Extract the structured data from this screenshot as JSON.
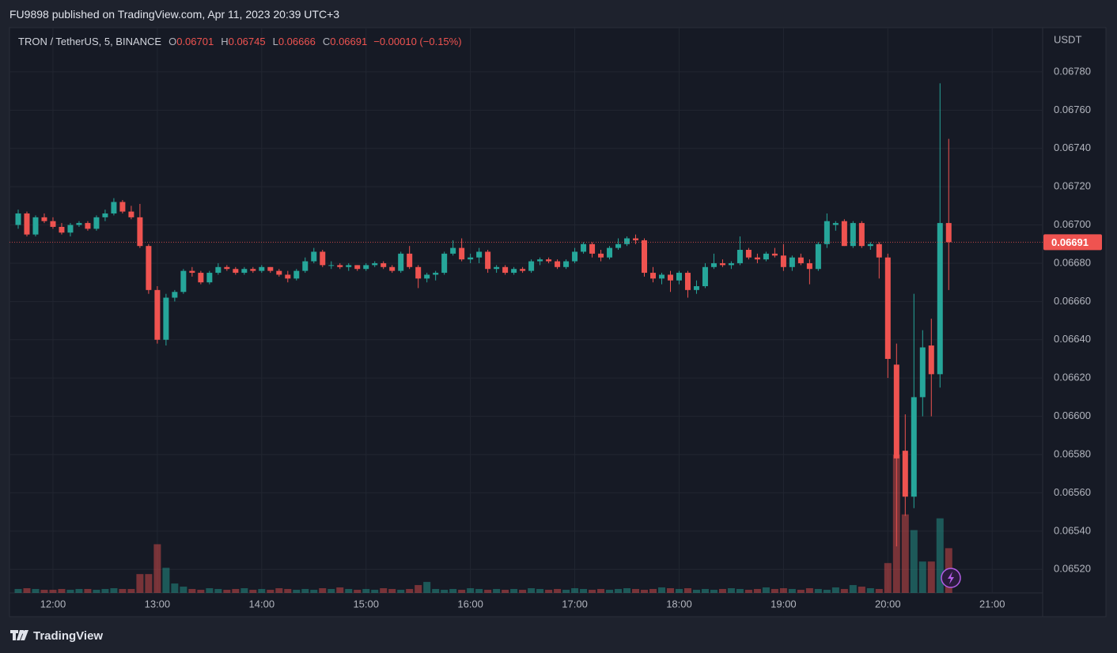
{
  "header": "FU9898 published on TradingView.com, Apr 11, 2023 20:39 UTC+3",
  "brand": "TradingView",
  "chart_data": {
    "type": "candlestick",
    "symbol": "TRON / TetherUS, 5, BINANCE",
    "ohlc_labels": [
      "O",
      "H",
      "L",
      "C"
    ],
    "change": "−0.00010 (−0.15%)",
    "y_unit": "USDT",
    "up_color": "#26a69a",
    "down_color": "#ef5350",
    "grid": true,
    "x": [
      "11:40",
      "11:45",
      "11:50",
      "11:55",
      "12:00",
      "12:05",
      "12:10",
      "12:15",
      "12:20",
      "12:25",
      "12:30",
      "12:35",
      "12:40",
      "12:45",
      "12:50",
      "12:55",
      "13:00",
      "13:05",
      "13:10",
      "13:15",
      "13:20",
      "13:25",
      "13:30",
      "13:35",
      "13:40",
      "13:45",
      "13:50",
      "13:55",
      "14:00",
      "14:05",
      "14:10",
      "14:15",
      "14:20",
      "14:25",
      "14:30",
      "14:35",
      "14:40",
      "14:45",
      "14:50",
      "14:55",
      "15:00",
      "15:05",
      "15:10",
      "15:15",
      "15:20",
      "15:25",
      "15:30",
      "15:35",
      "15:40",
      "15:45",
      "15:50",
      "15:55",
      "16:00",
      "16:05",
      "16:10",
      "16:15",
      "16:20",
      "16:25",
      "16:30",
      "16:35",
      "16:40",
      "16:45",
      "16:50",
      "16:55",
      "17:00",
      "17:05",
      "17:10",
      "17:15",
      "17:20",
      "17:25",
      "17:30",
      "17:35",
      "17:40",
      "17:45",
      "17:50",
      "17:55",
      "18:00",
      "18:05",
      "18:10",
      "18:15",
      "18:20",
      "18:25",
      "18:30",
      "18:35",
      "18:40",
      "18:45",
      "18:50",
      "18:55",
      "19:00",
      "19:05",
      "19:10",
      "19:15",
      "19:20",
      "19:25",
      "19:30",
      "19:35",
      "19:40",
      "19:45",
      "19:50",
      "19:55",
      "20:00",
      "20:05",
      "20:10",
      "20:15",
      "20:20",
      "20:25",
      "20:30",
      "20:35"
    ],
    "open": [
      0.067,
      0.06706,
      0.06695,
      0.06704,
      0.06702,
      0.06699,
      0.06696,
      0.067,
      0.06701,
      0.06698,
      0.06704,
      0.06706,
      0.06712,
      0.06707,
      0.06704,
      0.06689,
      0.06666,
      0.0664,
      0.06662,
      0.06665,
      0.06676,
      0.06675,
      0.0667,
      0.06675,
      0.06678,
      0.06677,
      0.06675,
      0.06677,
      0.06676,
      0.06678,
      0.06676,
      0.06674,
      0.06672,
      0.06676,
      0.06681,
      0.06686,
      0.06679,
      0.06679,
      0.06678,
      0.06679,
      0.06677,
      0.06679,
      0.0668,
      0.06678,
      0.06676,
      0.06685,
      0.06678,
      0.06672,
      0.06674,
      0.06675,
      0.06685,
      0.06688,
      0.06682,
      0.06683,
      0.06686,
      0.06677,
      0.06678,
      0.06675,
      0.06677,
      0.06676,
      0.06681,
      0.06682,
      0.06681,
      0.06678,
      0.06681,
      0.06686,
      0.0669,
      0.06685,
      0.06683,
      0.06688,
      0.0669,
      0.06693,
      0.06692,
      0.06675,
      0.06672,
      0.06674,
      0.06671,
      0.06675,
      0.06666,
      0.06668,
      0.06678,
      0.0668,
      0.06679,
      0.0668,
      0.06687,
      0.06683,
      0.06682,
      0.06685,
      0.06684,
      0.06678,
      0.06683,
      0.0668,
      0.06677,
      0.0669,
      0.067,
      0.06702,
      0.06689,
      0.06701,
      0.06689,
      0.0669,
      0.06683,
      0.06627,
      0.06582,
      0.06558,
      0.0661,
      0.06637,
      0.06622,
      0.06701
    ],
    "high": [
      0.06708,
      0.06707,
      0.06705,
      0.06706,
      0.06704,
      0.06701,
      0.06701,
      0.06702,
      0.06702,
      0.06705,
      0.06708,
      0.06714,
      0.06713,
      0.0671,
      0.06711,
      0.0669,
      0.06668,
      0.06664,
      0.06666,
      0.06677,
      0.06678,
      0.06676,
      0.06676,
      0.0668,
      0.06679,
      0.06678,
      0.06678,
      0.06678,
      0.06679,
      0.06678,
      0.06677,
      0.06676,
      0.06677,
      0.06683,
      0.06688,
      0.06687,
      0.06681,
      0.0668,
      0.0668,
      0.06679,
      0.0668,
      0.06681,
      0.06681,
      0.06679,
      0.06686,
      0.06689,
      0.06679,
      0.06675,
      0.06676,
      0.06686,
      0.06692,
      0.06693,
      0.06685,
      0.06688,
      0.06687,
      0.06679,
      0.06679,
      0.06678,
      0.06678,
      0.06682,
      0.06683,
      0.06683,
      0.06682,
      0.06682,
      0.06688,
      0.06691,
      0.06691,
      0.06687,
      0.06689,
      0.06693,
      0.06694,
      0.06695,
      0.06693,
      0.06678,
      0.06675,
      0.06676,
      0.06676,
      0.06676,
      0.06671,
      0.0668,
      0.06685,
      0.06682,
      0.06681,
      0.06694,
      0.06688,
      0.06685,
      0.06686,
      0.06688,
      0.0669,
      0.06684,
      0.06685,
      0.06682,
      0.06691,
      0.06706,
      0.06702,
      0.06703,
      0.06702,
      0.06702,
      0.06691,
      0.06691,
      0.06685,
      0.06638,
      0.06601,
      0.06664,
      0.06645,
      0.06651,
      0.06774,
      0.06745
    ],
    "low": [
      0.06698,
      0.06694,
      0.06694,
      0.06701,
      0.06698,
      0.06695,
      0.06694,
      0.06699,
      0.06697,
      0.06697,
      0.06702,
      0.06705,
      0.06706,
      0.06703,
      0.06688,
      0.06664,
      0.06638,
      0.06637,
      0.0666,
      0.06664,
      0.06673,
      0.06669,
      0.06669,
      0.06674,
      0.06676,
      0.06674,
      0.06674,
      0.06675,
      0.06675,
      0.06675,
      0.06673,
      0.0667,
      0.06671,
      0.06675,
      0.0668,
      0.06678,
      0.06677,
      0.06677,
      0.06676,
      0.06676,
      0.06676,
      0.06678,
      0.06677,
      0.06675,
      0.06675,
      0.06677,
      0.06667,
      0.0667,
      0.06671,
      0.06674,
      0.06684,
      0.06681,
      0.0668,
      0.0668,
      0.06675,
      0.06675,
      0.06674,
      0.06674,
      0.06675,
      0.06675,
      0.06679,
      0.0668,
      0.06677,
      0.06677,
      0.0668,
      0.06685,
      0.06683,
      0.06681,
      0.06682,
      0.06687,
      0.06689,
      0.0669,
      0.06673,
      0.0667,
      0.06669,
      0.06665,
      0.06669,
      0.06662,
      0.06664,
      0.06667,
      0.06677,
      0.06678,
      0.06677,
      0.06679,
      0.06682,
      0.0668,
      0.06681,
      0.06683,
      0.06676,
      0.06676,
      0.06679,
      0.06669,
      0.06676,
      0.06688,
      0.06697,
      0.06689,
      0.06688,
      0.06688,
      0.06687,
      0.06672,
      0.0662,
      0.06532,
      0.06548,
      0.06552,
      0.066,
      0.066,
      0.06615,
      0.06666
    ],
    "close": [
      0.06706,
      0.06695,
      0.06704,
      0.06702,
      0.06699,
      0.06696,
      0.067,
      0.06701,
      0.06698,
      0.06704,
      0.06706,
      0.06712,
      0.06707,
      0.06704,
      0.06689,
      0.06666,
      0.0664,
      0.06662,
      0.06665,
      0.06676,
      0.06675,
      0.0667,
      0.06675,
      0.06678,
      0.06677,
      0.06675,
      0.06677,
      0.06676,
      0.06678,
      0.06676,
      0.06674,
      0.06672,
      0.06676,
      0.06681,
      0.06686,
      0.06679,
      0.06679,
      0.06678,
      0.06679,
      0.06677,
      0.06679,
      0.0668,
      0.06678,
      0.06676,
      0.06685,
      0.06678,
      0.06672,
      0.06674,
      0.06675,
      0.06685,
      0.06688,
      0.06682,
      0.06683,
      0.06686,
      0.06677,
      0.06678,
      0.06675,
      0.06677,
      0.06676,
      0.06681,
      0.06682,
      0.06681,
      0.06678,
      0.06681,
      0.06686,
      0.0669,
      0.06685,
      0.06683,
      0.06688,
      0.0669,
      0.06693,
      0.06692,
      0.06675,
      0.06672,
      0.06674,
      0.06671,
      0.06675,
      0.06666,
      0.06668,
      0.06678,
      0.0668,
      0.06679,
      0.0668,
      0.06687,
      0.06683,
      0.06682,
      0.06685,
      0.06684,
      0.06678,
      0.06683,
      0.0668,
      0.06677,
      0.0669,
      0.06702,
      0.06701,
      0.06689,
      0.06701,
      0.06689,
      0.0669,
      0.06683,
      0.0663,
      0.06578,
      0.06558,
      0.0661,
      0.06636,
      0.06622,
      0.06701,
      0.06691
    ],
    "volume": [
      25,
      30,
      25,
      20,
      20,
      25,
      20,
      25,
      25,
      20,
      25,
      30,
      25,
      25,
      120,
      120,
      310,
      160,
      60,
      40,
      25,
      20,
      30,
      25,
      20,
      25,
      30,
      20,
      25,
      20,
      30,
      25,
      20,
      25,
      20,
      30,
      25,
      35,
      25,
      20,
      25,
      20,
      30,
      25,
      20,
      25,
      50,
      70,
      25,
      20,
      25,
      20,
      30,
      25,
      20,
      25,
      20,
      25,
      20,
      30,
      25,
      20,
      25,
      20,
      30,
      25,
      20,
      25,
      20,
      25,
      30,
      25,
      20,
      25,
      35,
      30,
      25,
      30,
      20,
      25,
      20,
      25,
      30,
      25,
      20,
      25,
      35,
      25,
      30,
      25,
      20,
      30,
      25,
      20,
      35,
      25,
      50,
      40,
      30,
      25,
      190,
      880,
      500,
      400,
      200,
      200,
      475,
      285
    ],
    "volume_lim": [
      0,
      3600
    ],
    "xlim": [
      "11:35",
      "21:29"
    ],
    "xticks": [
      "12:00",
      "13:00",
      "14:00",
      "15:00",
      "16:00",
      "17:00",
      "18:00",
      "19:00",
      "20:00",
      "21:00"
    ],
    "ylim": [
      0.065077,
      0.068031
    ],
    "yticks": [
      {
        "value": 0.0652,
        "label": "0.06520"
      },
      {
        "value": 0.0654,
        "label": "0.06540"
      },
      {
        "value": 0.0656,
        "label": "0.06560"
      },
      {
        "value": 0.0658,
        "label": "0.06580"
      },
      {
        "value": 0.066,
        "label": "0.06600"
      },
      {
        "value": 0.0662,
        "label": "0.06620"
      },
      {
        "value": 0.0664,
        "label": "0.06640"
      },
      {
        "value": 0.0666,
        "label": "0.06660"
      },
      {
        "value": 0.0668,
        "label": "0.06680"
      },
      {
        "value": 0.067,
        "label": "0.06700"
      },
      {
        "value": 0.0672,
        "label": "0.06720"
      },
      {
        "value": 0.0674,
        "label": "0.06740"
      },
      {
        "value": 0.0676,
        "label": "0.06760"
      },
      {
        "value": 0.0678,
        "label": "0.06780"
      }
    ]
  }
}
